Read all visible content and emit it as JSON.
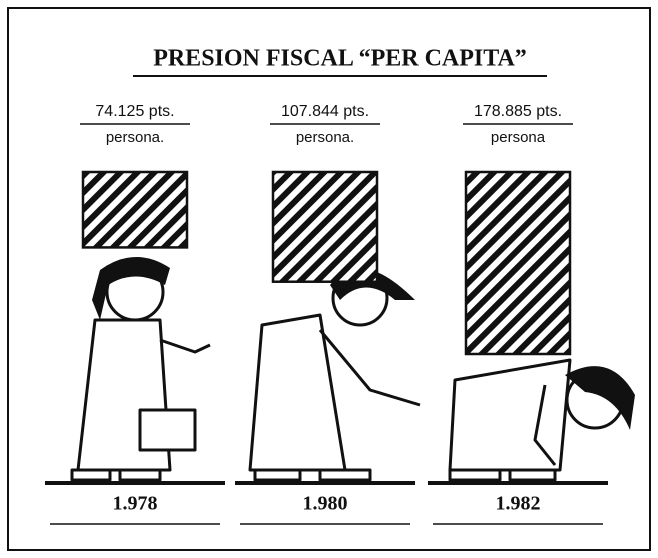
{
  "chart_data": {
    "type": "pictogram",
    "title": "PRESION FISCAL “PER CAPITA”",
    "categories": [
      "1.978",
      "1.980",
      "1.982"
    ],
    "values": [
      74125,
      107844,
      178885
    ],
    "value_labels": [
      "74.125 pts.",
      "107.844 pts.",
      "178.885 pts."
    ],
    "unit_labels": [
      "persona.",
      "persona.",
      "persona"
    ],
    "color": "#111111"
  }
}
